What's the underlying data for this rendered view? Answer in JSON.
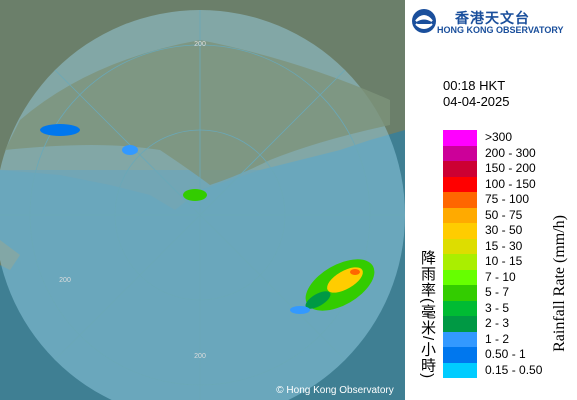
{
  "header": {
    "org_chinese": "香港天文台",
    "org_english": "HONG KONG OBSERVATORY"
  },
  "time": "00:18 HKT",
  "date": "04-04-2025",
  "legend": {
    "title_chinese": "降雨率(毫米/小時)",
    "title_english": "Rainfall Rate (mm/h)",
    "items": [
      {
        "label": ">300",
        "color": "#ff00ff"
      },
      {
        "label": "200 - 300",
        "color": "#cc0099"
      },
      {
        "label": "150 - 200",
        "color": "#cc0033"
      },
      {
        "label": "100 - 150",
        "color": "#ff0000"
      },
      {
        "label": "75 - 100",
        "color": "#ff6600"
      },
      {
        "label": "50 - 75",
        "color": "#ffaa00"
      },
      {
        "label": "30 - 50",
        "color": "#ffcc00"
      },
      {
        "label": "15 - 30",
        "color": "#dddd00"
      },
      {
        "label": "10 - 15",
        "color": "#aaee00"
      },
      {
        "label": "7 - 10",
        "color": "#66ff00"
      },
      {
        "label": "5 - 7",
        "color": "#33cc00"
      },
      {
        "label": "3 - 5",
        "color": "#00bb33"
      },
      {
        "label": "2 - 3",
        "color": "#009944"
      },
      {
        "label": "1 - 2",
        "color": "#3399ff"
      },
      {
        "label": "0.50 - 1",
        "color": "#0077ee"
      },
      {
        "label": "0.15 - 0.50",
        "color": "#00ccff"
      }
    ]
  },
  "map": {
    "ring_labels": [
      "200",
      "200",
      "200"
    ],
    "copyright": "© Hong Kong Observatory"
  }
}
